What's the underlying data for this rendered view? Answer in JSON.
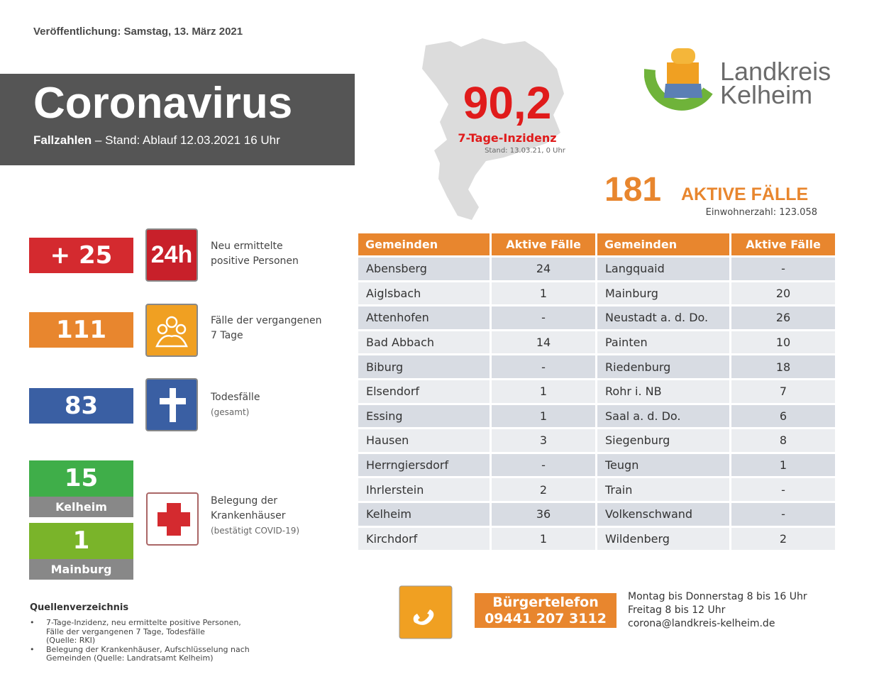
{
  "header": {
    "publication": "Veröffentlichung: Samstag, 13. März 2021",
    "title": "Coronavirus",
    "subtitle_bold": "Fallzahlen",
    "subtitle": "– Stand: Ablauf 12.03.2021 16 Uhr"
  },
  "incidence": {
    "value": "90,2",
    "label": "7-Tage-Inzidenz",
    "date": "Stand: 13.03.21, 0 Uhr"
  },
  "logo": {
    "line1": "Landkreis",
    "line2": "Kelheim"
  },
  "active": {
    "value": 181,
    "label": "AKTIVE FÄLLE",
    "population": "Einwohnerzahl: 123.058"
  },
  "stats": [
    {
      "value": "+ 25",
      "icon": "24h",
      "text": [
        "Neu ermittelte",
        "positive Personen"
      ]
    },
    {
      "value": 111,
      "text": [
        "Fälle der vergangenen",
        "7 Tage"
      ]
    },
    {
      "value": 83,
      "text": [
        "Todesfälle"
      ],
      "note": "(gesamt)"
    }
  ],
  "hospital": {
    "kelheim": {
      "value": 15,
      "label": "Kelheim"
    },
    "mainburg": {
      "value": 1,
      "label": "Mainburg"
    },
    "text": [
      "Belegung der",
      "Krankenhäuser"
    ],
    "note": "(bestätigt COVID-19)"
  },
  "table": {
    "columns": [
      "Gemeinden",
      "Aktive Fälle",
      "Gemeinden",
      "Aktive Fälle"
    ],
    "rows": [
      [
        "Abensberg",
        24,
        "Langquaid",
        "-"
      ],
      [
        "Aiglsbach",
        1,
        "Mainburg",
        20
      ],
      [
        "Attenhofen",
        "-",
        "Neustadt a. d. Do.",
        26
      ],
      [
        "Bad Abbach",
        14,
        "Painten",
        10
      ],
      [
        "Biburg",
        "-",
        "Riedenburg",
        18
      ],
      [
        "Elsendorf",
        1,
        "Rohr i. NB",
        7
      ],
      [
        "Essing",
        1,
        "Saal a. d. Do.",
        6
      ],
      [
        "Hausen",
        3,
        "Siegenburg",
        8
      ],
      [
        "Herrngiersdorf",
        "-",
        "Teugn",
        1
      ],
      [
        "Ihrlerstein",
        2,
        "Train",
        "-"
      ],
      [
        "Kelheim",
        36,
        "Volkenschwand",
        "-"
      ],
      [
        "Kirchdorf",
        1,
        "Wildenberg",
        2
      ]
    ]
  },
  "sources": {
    "title": "Quellenverzeichnis",
    "items": [
      [
        "7-Tage-Inzidenz, neu ermittelte positive Personen,",
        "Fälle der vergangenen 7 Tage, Todesfälle",
        "(Quelle: RKI)"
      ],
      [
        "Belegung der Krankenhäuser, Aufschlüsselung nach",
        "Gemeinden (Quelle: Landratsamt Kelheim)"
      ]
    ]
  },
  "contact": {
    "label": "Bürgertelefon",
    "phone": "09441 207 3112",
    "lines": [
      "Montag bis Donnerstag 8 bis 16 Uhr",
      "Freitag 8 bis 12 Uhr",
      "corona@landkreis-kelheim.de"
    ]
  }
}
